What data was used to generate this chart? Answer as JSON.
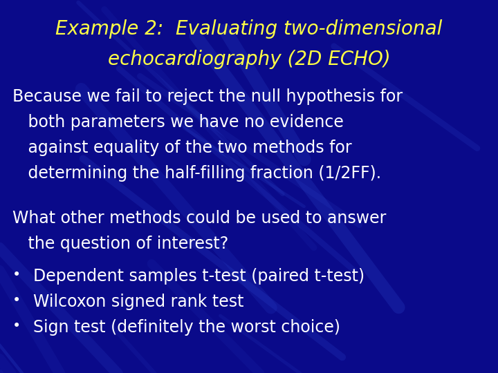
{
  "title_line1": "Example 2:  Evaluating two-dimensional",
  "title_line2": "echocardiography (2D ECHO)",
  "title_color": "#FFFF44",
  "body_color": "#FFFFFF",
  "background_color": "#0a0a8a",
  "para1_lines": [
    "Because we fail to reject the null hypothesis for",
    "   both parameters we have no evidence",
    "   against equality of the two methods for",
    "   determining the half-filling fraction (1/2FF)."
  ],
  "para2_lines": [
    "What other methods could be used to answer",
    "   the question of interest?"
  ],
  "bullets": [
    "Dependent samples t-test (paired t-test)",
    "Wilcoxon signed rank test",
    "Sign test (definitely the worst choice)"
  ],
  "title_fontsize": 20,
  "body_fontsize": 17,
  "figsize": [
    7.2,
    5.4
  ],
  "dpi": 100
}
